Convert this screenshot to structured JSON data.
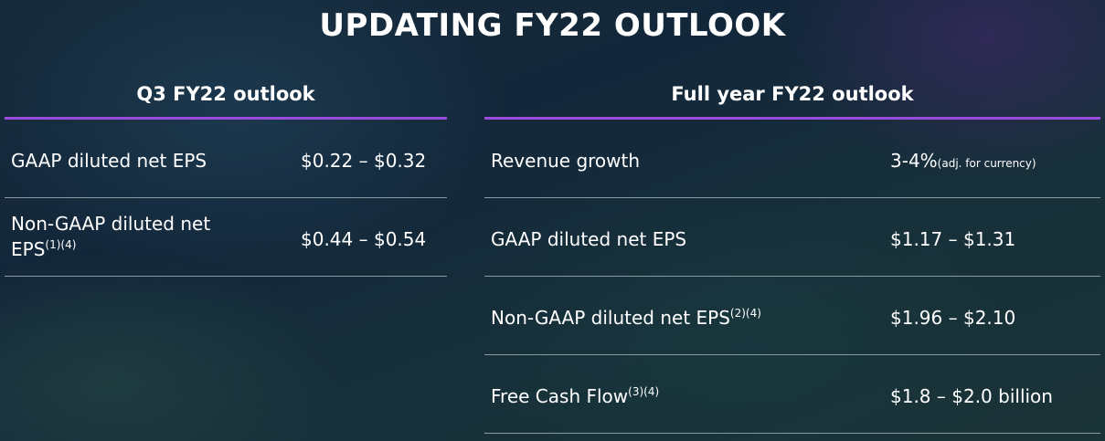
{
  "title": "UPDATING FY22 OUTLOOK",
  "left": {
    "heading": "Q3 FY22 outlook",
    "rows": [
      {
        "label": "GAAP diluted net EPS",
        "sup": "",
        "value": "$0.22 – $0.32"
      },
      {
        "label": "Non-GAAP diluted net EPS",
        "sup": "(1)(4)",
        "value": "$0.44 – $0.54"
      }
    ]
  },
  "right": {
    "heading": "Full year FY22 outlook",
    "rows": [
      {
        "label": "Revenue growth",
        "sup": "",
        "value": "3-4%",
        "note": "(adj. for currency)"
      },
      {
        "label": "GAAP diluted net EPS",
        "sup": "",
        "value": "$1.17 – $1.31"
      },
      {
        "label": "Non-GAAP diluted net EPS",
        "sup": "(2)(4)",
        "value": "$1.96 – $2.10"
      },
      {
        "label": "Free Cash Flow",
        "sup": "(3)(4)",
        "value": "$1.8 – $2.0 billion"
      }
    ]
  },
  "colors": {
    "accent": "#9b4bdc",
    "divider": "#8a9aa3"
  }
}
